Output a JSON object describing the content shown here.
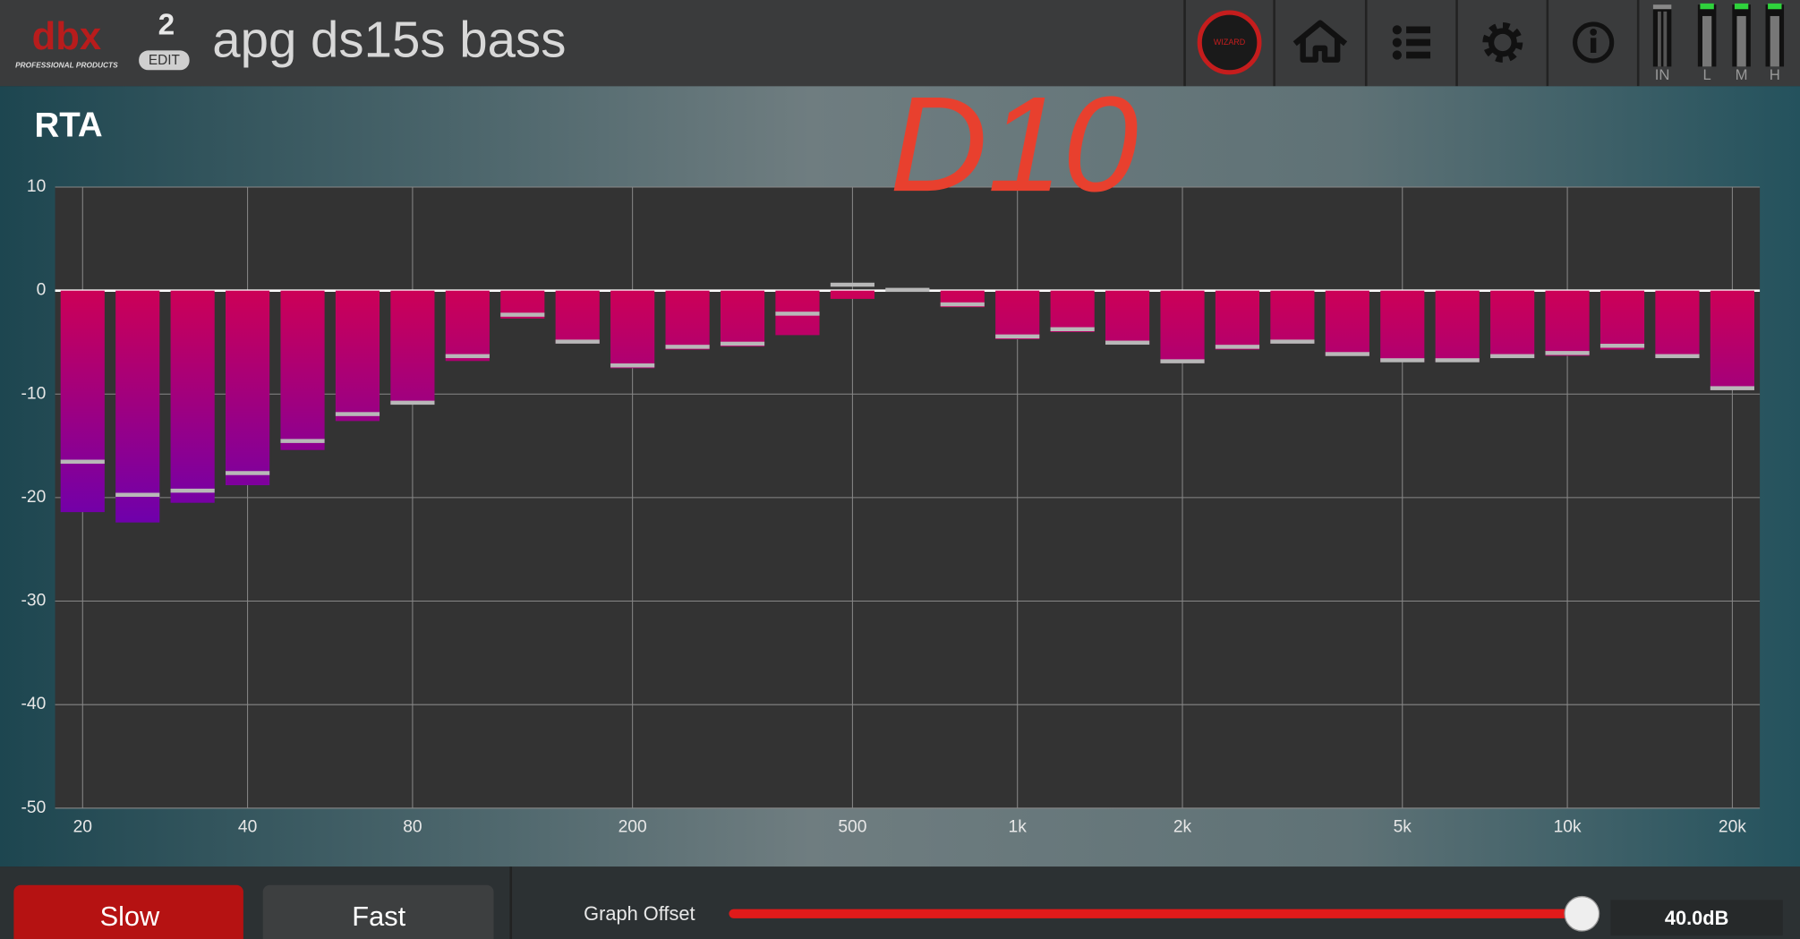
{
  "header": {
    "logo": "dbx",
    "logo_sub": "PROFESSIONAL PRODUCTS",
    "preset_number": "2",
    "edit": "EDIT",
    "preset_name": "apg ds15s bass",
    "wizard": "WIZARD",
    "meters": [
      "IN",
      "L",
      "M",
      "H"
    ]
  },
  "chart_data": {
    "type": "bar",
    "title": "RTA",
    "annotation": "D10",
    "categories": [
      "20",
      null,
      null,
      "40",
      null,
      null,
      "80",
      null,
      null,
      null,
      "200",
      null,
      null,
      null,
      "500",
      null,
      null,
      "1k",
      null,
      null,
      "2k",
      null,
      null,
      null,
      "5k",
      null,
      null,
      "10k",
      null,
      null,
      "20k"
    ],
    "values": [
      -21.4,
      -22.4,
      -20.5,
      -18.8,
      -15.4,
      -12.6,
      -11.0,
      -6.8,
      -2.7,
      -5.1,
      -7.5,
      -5.7,
      -5.4,
      -4.3,
      -0.8,
      0,
      -1.6,
      -4.7,
      -4.0,
      -5.2,
      -7.0,
      -5.7,
      -5.1,
      -6.3,
      -6.9,
      -6.9,
      -6.5,
      -6.3,
      -5.7,
      -6.5,
      -9.6
    ],
    "peak_values": [
      -16.5,
      -19.7,
      -19.3,
      -17.6,
      -14.5,
      -11.9,
      -10.8,
      -6.3,
      -2.3,
      -4.9,
      -7.2,
      -5.4,
      -5.1,
      -2.2,
      0.6,
      0.1,
      -1.3,
      -4.4,
      -3.7,
      -5.0,
      -6.8,
      -5.4,
      -4.9,
      -6.1,
      -6.7,
      -6.7,
      -6.3,
      -6.0,
      -5.3,
      -6.3,
      -9.4
    ],
    "ylim": [
      -50,
      10
    ],
    "yticks": [
      10,
      0,
      -10,
      -20,
      -30,
      -40,
      -50
    ],
    "grid": true,
    "gradient": [
      "#0a0cff",
      "#6a00b0",
      "#d8004c"
    ],
    "peak_color": "#b8b8b8",
    "plot_color": "#333333"
  },
  "controls": {
    "slow": "Slow",
    "fast": "Fast",
    "offset_label": "Graph Offset",
    "offset_value": "40.0dB"
  }
}
